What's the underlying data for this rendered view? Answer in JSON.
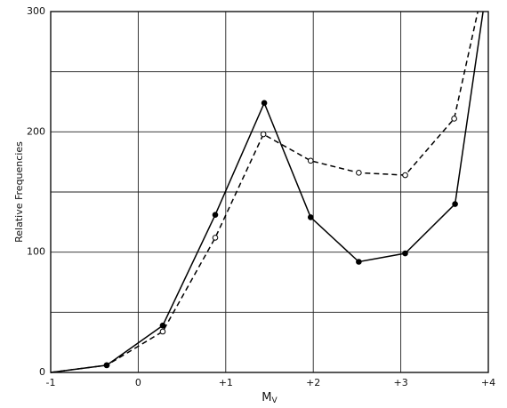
{
  "chart_data": {
    "type": "line",
    "xlabel": "M",
    "xlabel_sub": "V",
    "ylabel": "Relative Frequencies",
    "xlim": [
      -1,
      4
    ],
    "ylim": [
      0,
      300
    ],
    "xticks": [
      {
        "value": -1,
        "label": "-1"
      },
      0,
      {
        "value": 1,
        "label": "+1"
      },
      {
        "value": 2,
        "label": "+2"
      },
      {
        "value": 3,
        "label": "+3"
      },
      {
        "value": 4,
        "label": "+4"
      }
    ],
    "yticks": [
      0,
      100,
      200,
      300
    ],
    "minor_yticks": [
      50,
      150,
      250
    ],
    "grid": true,
    "series": [
      {
        "color": "#000000",
        "dash": false,
        "marker": "filled",
        "x": [
          -1,
          -0.36,
          0.28,
          0.88,
          1.44,
          1.97,
          2.52,
          3.05,
          3.62,
          3.94
        ],
        "values": [
          0,
          6,
          39,
          131,
          224,
          129,
          92,
          99,
          140,
          300
        ]
      },
      {
        "color": "#000000",
        "dash": true,
        "marker": "open",
        "x": [
          -1,
          -0.36,
          0.28,
          0.88,
          1.43,
          1.97,
          2.52,
          3.05,
          3.61,
          3.88
        ],
        "values": [
          0,
          6,
          34,
          112,
          198,
          176,
          166,
          164,
          211,
          300
        ]
      }
    ]
  }
}
